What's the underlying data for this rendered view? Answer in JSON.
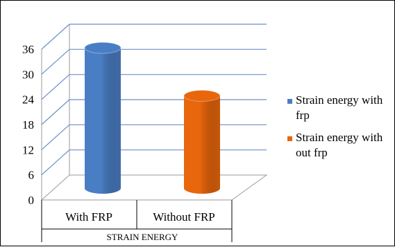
{
  "chart_data": {
    "type": "bar",
    "style": "3d-cylinder",
    "categories": [
      "With FRP",
      "Without FRP"
    ],
    "series": [
      {
        "name": "Strain energy with frp",
        "values": [
          31.6,
          null
        ],
        "color": "#4a7ec4"
      },
      {
        "name": "Strain energy with out frp",
        "values": [
          null,
          20.8
        ],
        "color": "#e8660c"
      }
    ],
    "title": "",
    "xlabel": "STRAIN ENERGY",
    "ylabel": "",
    "ylim": [
      0,
      36
    ],
    "yticks": [
      0,
      6,
      12,
      18,
      24,
      30,
      36
    ],
    "grid": true,
    "legend_position": "right"
  }
}
